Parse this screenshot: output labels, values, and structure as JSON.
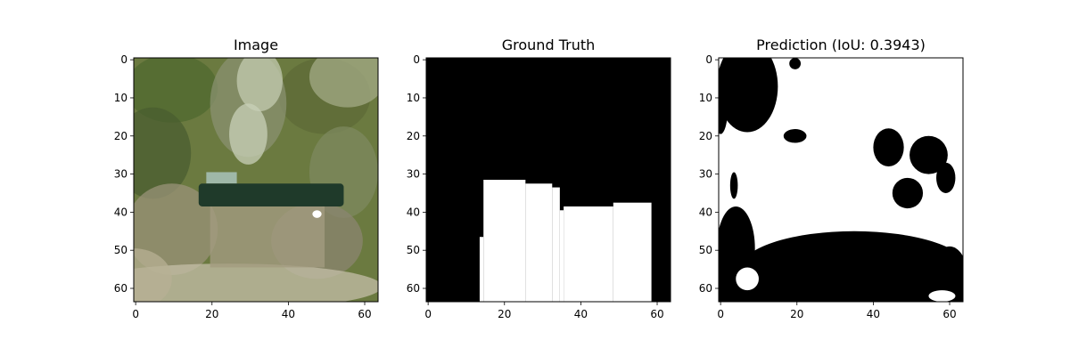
{
  "chart_data": [
    {
      "type": "heatmap",
      "title": "Image",
      "content": "photo",
      "image_size": [
        64,
        64
      ],
      "xticks": [
        "0",
        "20",
        "40",
        "60"
      ],
      "yticks": [
        "0",
        "10",
        "20",
        "30",
        "40",
        "50",
        "60"
      ],
      "colors": {
        "vegetation": "#6b7a40",
        "dark_band": "#1f3a2a",
        "light_strip": "#c8d0b8",
        "ground": "#a39b80"
      }
    },
    {
      "type": "heatmap",
      "title": "Ground Truth",
      "content": "mask",
      "colormap": "gray",
      "image_size": [
        64,
        64
      ],
      "xticks": [
        "0",
        "20",
        "40",
        "60"
      ],
      "yticks": [
        "0",
        "10",
        "20",
        "30",
        "40",
        "50",
        "60"
      ],
      "white_regions": [
        {
          "x": [
            14,
            15
          ],
          "y": [
            47,
            64
          ]
        },
        {
          "x": [
            15,
            26
          ],
          "y": [
            32,
            64
          ]
        },
        {
          "x": [
            26,
            33
          ],
          "y": [
            33,
            64
          ]
        },
        {
          "x": [
            33,
            35
          ],
          "y": [
            34,
            64
          ]
        },
        {
          "x": [
            35,
            36
          ],
          "y": [
            40,
            64
          ]
        },
        {
          "x": [
            36,
            49
          ],
          "y": [
            39,
            64
          ]
        },
        {
          "x": [
            49,
            59
          ],
          "y": [
            38,
            64
          ]
        }
      ]
    },
    {
      "type": "heatmap",
      "title": "Prediction (IoU: 0.3943)",
      "content": "mask",
      "colormap": "gray",
      "image_size": [
        64,
        64
      ],
      "xticks": [
        "0",
        "20",
        "40",
        "60"
      ],
      "yticks": [
        "0",
        "10",
        "20",
        "30",
        "40",
        "50",
        "60"
      ],
      "background": "white",
      "black_blobs": [
        {
          "cx": 7.5,
          "cy": 7.5,
          "rx": 8,
          "ry": 12
        },
        {
          "cx": 0.5,
          "cy": 12,
          "rx": 2,
          "ry": 8
        },
        {
          "cx": 20,
          "cy": 20.5,
          "rx": 3,
          "ry": 1.8
        },
        {
          "cx": 44.5,
          "cy": 23.5,
          "rx": 4,
          "ry": 5
        },
        {
          "cx": 55,
          "cy": 25.5,
          "rx": 5,
          "ry": 5
        },
        {
          "cx": 49.5,
          "cy": 35.5,
          "rx": 4,
          "ry": 4
        },
        {
          "cx": 59.5,
          "cy": 31.5,
          "rx": 2.5,
          "ry": 4
        },
        {
          "cx": 4.5,
          "cy": 50,
          "rx": 5,
          "ry": 11
        },
        {
          "cx": 35.5,
          "cy": 55.5,
          "rx": 30,
          "ry": 10
        },
        {
          "cx": 60.5,
          "cy": 56.5,
          "rx": 4.5,
          "ry": 7
        },
        {
          "cx": 20,
          "cy": 1.5,
          "rx": 1.5,
          "ry": 1.5
        },
        {
          "cx": 4,
          "cy": 33.5,
          "rx": 1,
          "ry": 3.5
        }
      ],
      "white_blobs": [
        {
          "cx": 7.5,
          "cy": 58,
          "rx": 3,
          "ry": 3
        },
        {
          "cx": 58.5,
          "cy": 62.5,
          "rx": 3.5,
          "ry": 1.5
        }
      ]
    }
  ]
}
